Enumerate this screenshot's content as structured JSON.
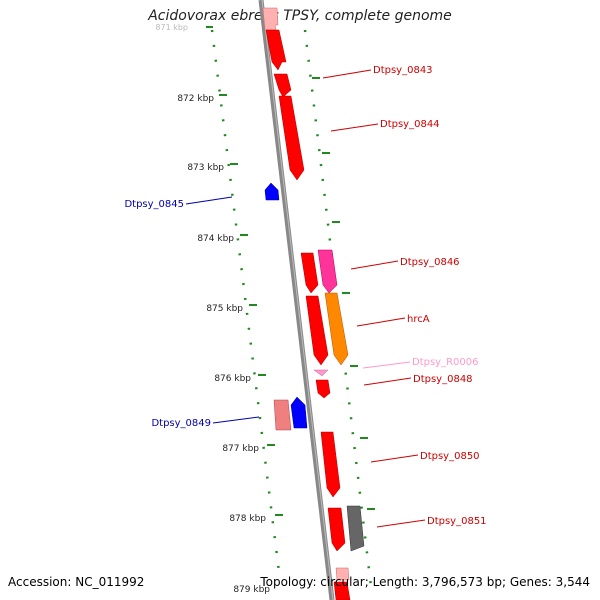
{
  "title": "Acidovorax ebreus TPSY, complete genome",
  "ruler": {
    "ticks": [
      "871 kbp",
      "872 kbp",
      "873 kbp",
      "874 kbp",
      "875 kbp",
      "876 kbp",
      "877 kbp",
      "878 kbp",
      "879 kbp"
    ]
  },
  "features": [
    {
      "id": "f1",
      "color": "#ff0000"
    },
    {
      "id": "f2",
      "color": "#ff0000"
    },
    {
      "id": "f3",
      "color": "#ff0000",
      "label": "Dtpsy_0843"
    },
    {
      "id": "f4",
      "color": "#ff0000",
      "label": "Dtpsy_0844"
    },
    {
      "id": "f5",
      "color": "#0000ff",
      "label": "Dtpsy_0845"
    },
    {
      "id": "f6",
      "color": "#ff0000"
    },
    {
      "id": "f7",
      "color": "#ff3399",
      "label": "Dtpsy_0846"
    },
    {
      "id": "f8",
      "color": "#ff0000"
    },
    {
      "id": "f9",
      "color": "#ff8800",
      "label": "hrcA"
    },
    {
      "id": "f10",
      "color": "#ff99cc",
      "label": "Dtpsy_R0006"
    },
    {
      "id": "f11",
      "color": "#ff0000",
      "label": "Dtpsy_0848"
    },
    {
      "id": "f12",
      "color": "#f08080"
    },
    {
      "id": "f13",
      "color": "#0000ff",
      "label": "Dtpsy_0849"
    },
    {
      "id": "f14",
      "color": "#ff0000",
      "label": "Dtpsy_0850"
    },
    {
      "id": "f15",
      "color": "#ff0000"
    },
    {
      "id": "f16",
      "color": "#666666",
      "label": "Dtpsy_0851"
    }
  ],
  "footer": {
    "accession": "Accession: NC_011992",
    "topology": "Topology: circular;",
    "length": "Length: 3,796,573 bp;",
    "genes": "Genes: 3,544"
  }
}
